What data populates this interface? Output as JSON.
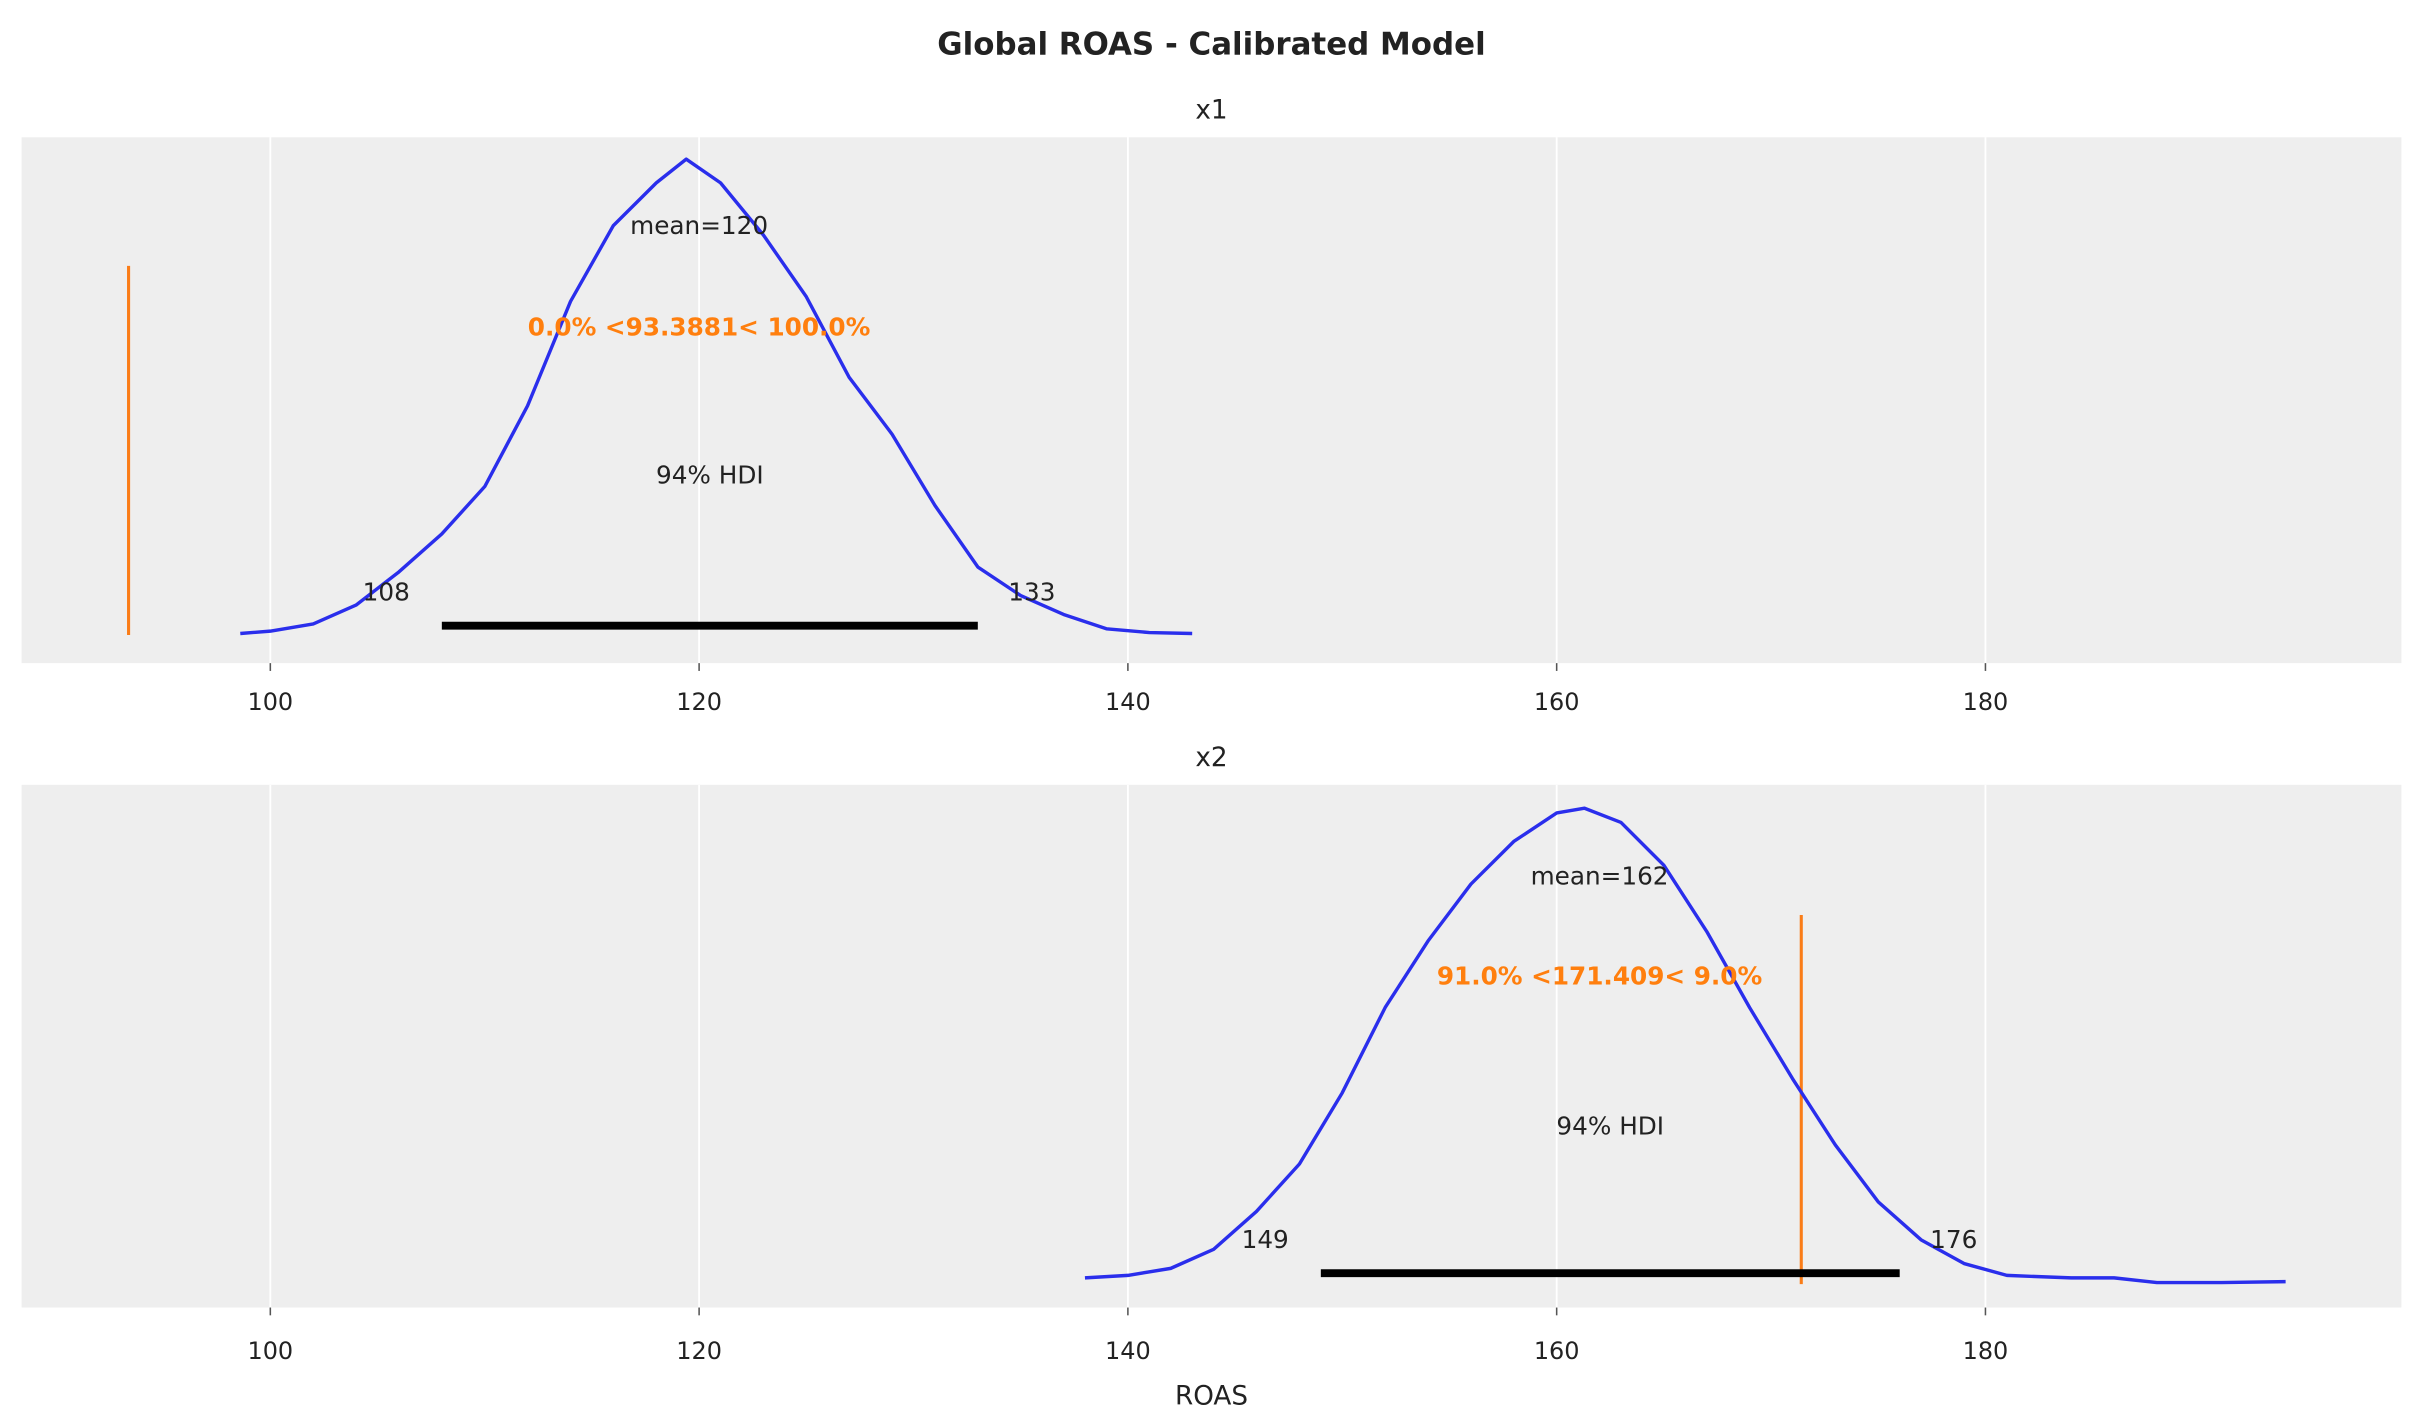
{
  "chart_data": [
    {
      "type": "line",
      "title": "x1",
      "xlim": [
        88.4,
        199.4
      ],
      "xticks": [
        100,
        120,
        140,
        160,
        180
      ],
      "xtick_labels": [
        "100",
        "120",
        "140",
        "160",
        "180"
      ],
      "grid": true,
      "density_x": [
        98.6,
        100,
        102,
        104,
        106,
        108,
        110,
        112,
        114,
        116,
        118,
        119.4,
        121,
        123,
        125,
        127,
        129,
        131,
        133,
        135,
        137,
        139,
        141,
        143
      ],
      "density_rel": [
        0,
        0.005,
        0.02,
        0.06,
        0.13,
        0.21,
        0.31,
        0.48,
        0.7,
        0.86,
        0.95,
        1.0,
        0.95,
        0.84,
        0.71,
        0.54,
        0.42,
        0.27,
        0.14,
        0.08,
        0.04,
        0.01,
        0.002,
        0
      ],
      "mean": 120,
      "mean_label": "mean=120",
      "hdi": [
        108,
        133
      ],
      "hdi_labels": [
        "108",
        "133"
      ],
      "hdi_label": "94% HDI",
      "ref_val": 93.3881,
      "ref_label": "0.0% <93.3881< 100.0%",
      "mean_x": 120,
      "ref_text_x": 120,
      "ref_line_top_rel": 0.775
    },
    {
      "type": "line",
      "title": "x2",
      "xlim": [
        88.4,
        199.4
      ],
      "xticks": [
        100,
        120,
        140,
        160,
        180
      ],
      "xtick_labels": [
        "100",
        "120",
        "140",
        "160",
        "180"
      ],
      "grid": true,
      "xlabel": "ROAS",
      "density_x": [
        138,
        140,
        142,
        144,
        146,
        148,
        150,
        152,
        154,
        156,
        158,
        160,
        161.3,
        163,
        165,
        167,
        169,
        171,
        173,
        175,
        177,
        179,
        181,
        184,
        186,
        188,
        191,
        194
      ],
      "density_rel": [
        0.01,
        0.015,
        0.03,
        0.07,
        0.15,
        0.25,
        0.4,
        0.58,
        0.72,
        0.84,
        0.93,
        0.99,
        1.0,
        0.97,
        0.88,
        0.74,
        0.58,
        0.43,
        0.29,
        0.17,
        0.09,
        0.04,
        0.015,
        0.01,
        0.01,
        0.0,
        0.0,
        0.002
      ],
      "mean": 162,
      "mean_label": "mean=162",
      "hdi": [
        149,
        176
      ],
      "hdi_labels": [
        "149",
        "176"
      ],
      "hdi_label": "94% HDI",
      "ref_val": 171.409,
      "ref_label": "91.0% <171.409< 9.0%",
      "mean_x": 162,
      "ref_text_x": 162,
      "ref_line_top_rel": 0.775
    }
  ],
  "suptitle": "Global ROAS - Calibrated Model",
  "colors": {
    "kde": "#2a2eec",
    "ref": "#fa7c17",
    "ref_text": "#ff7f0e",
    "hdi": "#000000",
    "bg": "#eeeeee",
    "grid": "#ffffff"
  }
}
